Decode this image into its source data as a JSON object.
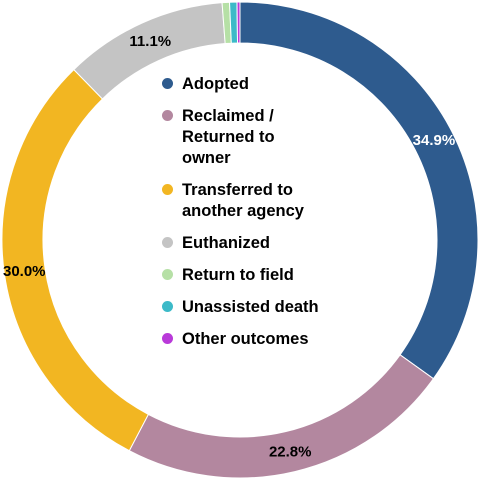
{
  "chart_data": {
    "type": "pie",
    "style": "donut",
    "legend_position": "center",
    "title": "",
    "slices": [
      {
        "name": "Adopted",
        "value": 34.9,
        "label": "34.9%",
        "color": "#2e5b8e",
        "label_color": "#ffffff"
      },
      {
        "name": "Reclaimed /\nReturned to\nowner",
        "value": 22.8,
        "label": "22.8%",
        "color": "#b3879f",
        "label_color": "#000000"
      },
      {
        "name": "Transferred to\nanother agency",
        "value": 30.0,
        "label": "30.0%",
        "color": "#f2b622",
        "label_color": "#000000"
      },
      {
        "name": "Euthanized",
        "value": 11.1,
        "label": "11.1%",
        "color": "#c4c4c4",
        "label_color": "#000000"
      },
      {
        "name": "Return to field",
        "value": 0.5,
        "label": "",
        "color": "#b6e0a6",
        "label_color": "#000000"
      },
      {
        "name": "Unassisted death",
        "value": 0.5,
        "label": "",
        "color": "#3cbac8",
        "label_color": "#000000"
      },
      {
        "name": "Other outcomes",
        "value": 0.2,
        "label": "",
        "color": "#b93ad9",
        "label_color": "#000000"
      }
    ]
  }
}
